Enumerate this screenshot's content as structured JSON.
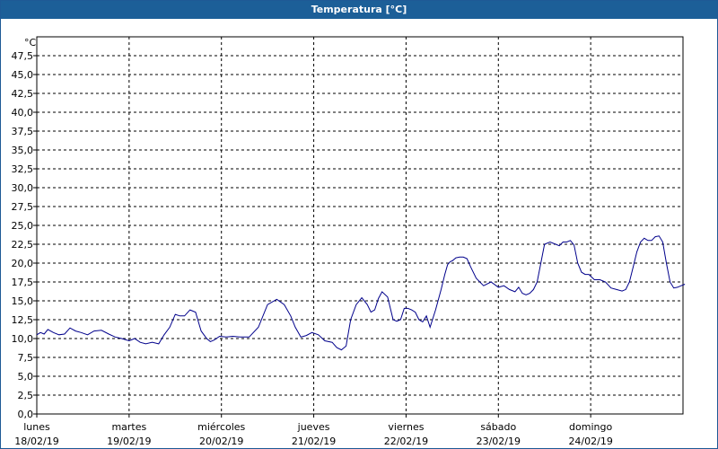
{
  "window": {
    "title": "Temperatura [°C]"
  },
  "chart_data": {
    "type": "line",
    "title": "Temperatura [°C]",
    "ylabel": "°C",
    "xlabel": "",
    "ylim": [
      0,
      50
    ],
    "ytick_step": 2.5,
    "ytick_labels": [
      "0,0",
      "2,5",
      "5,0",
      "7,5",
      "10,0",
      "12,5",
      "15,0",
      "17,5",
      "20,0",
      "22,5",
      "25,0",
      "27,5",
      "30,0",
      "32,5",
      "35,0",
      "37,5",
      "40,0",
      "42,5",
      "45,0",
      "47,5"
    ],
    "grid": true,
    "x_unit": "day",
    "xlim": [
      0,
      7
    ],
    "x_categories": [
      {
        "day": "lunes",
        "date": "18/02/19"
      },
      {
        "day": "martes",
        "date": "19/02/19"
      },
      {
        "day": "miércoles",
        "date": "20/02/19"
      },
      {
        "day": "jueves",
        "date": "21/02/19"
      },
      {
        "day": "viernes",
        "date": "22/02/19"
      },
      {
        "day": "sábado",
        "date": "23/02/19"
      },
      {
        "day": "domingo",
        "date": "24/02/19"
      }
    ],
    "series": [
      {
        "color": "#00008b",
        "x": [
          0.0,
          0.04,
          0.08,
          0.12,
          0.18,
          0.24,
          0.3,
          0.36,
          0.42,
          0.48,
          0.55,
          0.62,
          0.7,
          0.78,
          0.85,
          0.92,
          1.0,
          1.06,
          1.12,
          1.18,
          1.25,
          1.32,
          1.38,
          1.44,
          1.5,
          1.55,
          1.6,
          1.66,
          1.72,
          1.78,
          1.84,
          1.88,
          1.92,
          1.98,
          2.05,
          2.12,
          2.2,
          2.3,
          2.4,
          2.5,
          2.6,
          2.68,
          2.75,
          2.8,
          2.86,
          2.92,
          2.98,
          3.05,
          3.12,
          3.2,
          3.25,
          3.3,
          3.35,
          3.4,
          3.46,
          3.52,
          3.58,
          3.62,
          3.66,
          3.7,
          3.74,
          3.8,
          3.86,
          3.9,
          3.94,
          3.98,
          4.02,
          4.06,
          4.1,
          4.14,
          4.18,
          4.22,
          4.26,
          4.32,
          4.38,
          4.42,
          4.45,
          4.48,
          4.5,
          4.54,
          4.58,
          4.62,
          4.66,
          4.7,
          4.76,
          4.84,
          4.92,
          5.0,
          5.06,
          5.12,
          5.18,
          5.22,
          5.26,
          5.3,
          5.34,
          5.38,
          5.42,
          5.46,
          5.5,
          5.56,
          5.62,
          5.66,
          5.7,
          5.74,
          5.78,
          5.82,
          5.86,
          5.9,
          5.94,
          5.98,
          6.04,
          6.1,
          6.16,
          6.22,
          6.28,
          6.34,
          6.38,
          6.42,
          6.46,
          6.5,
          6.54,
          6.58,
          6.62,
          6.66,
          6.7,
          6.74,
          6.78,
          6.82,
          6.86,
          6.9,
          6.94,
          6.98,
          7.02
        ],
        "y": [
          10.5,
          10.8,
          10.6,
          11.2,
          10.8,
          10.5,
          10.6,
          11.4,
          11.0,
          10.8,
          10.5,
          11.0,
          11.1,
          10.6,
          10.2,
          10.0,
          9.7,
          10.0,
          9.5,
          9.3,
          9.5,
          9.3,
          10.5,
          11.5,
          13.2,
          13.0,
          13.0,
          13.8,
          13.5,
          11.0,
          10.0,
          9.6,
          9.8,
          10.3,
          10.2,
          10.3,
          10.2,
          10.2,
          11.5,
          14.5,
          15.2,
          14.5,
          13.0,
          11.5,
          10.2,
          10.4,
          10.8,
          10.5,
          9.7,
          9.5,
          8.8,
          8.5,
          9.0,
          12.5,
          14.5,
          15.4,
          14.5,
          13.5,
          13.8,
          15.3,
          16.2,
          15.5,
          12.5,
          12.3,
          12.5,
          14.0,
          14.0,
          13.8,
          13.5,
          12.5,
          12.2,
          13.0,
          11.5,
          13.8,
          16.5,
          18.5,
          19.8,
          20.2,
          20.3,
          20.7,
          20.8,
          20.8,
          20.6,
          19.5,
          18.0,
          17.0,
          17.5,
          16.8,
          17.0,
          16.5,
          16.2,
          16.8,
          16.0,
          15.8,
          16.0,
          16.5,
          17.5,
          20.0,
          22.5,
          22.8,
          22.5,
          22.3,
          22.8,
          22.8,
          23.0,
          22.4,
          20.0,
          18.8,
          18.5,
          18.5,
          17.8,
          17.8,
          17.5,
          16.7,
          16.5,
          16.3,
          16.5,
          17.5,
          19.5,
          21.5,
          22.8,
          23.3,
          23.0,
          23.0,
          23.5,
          23.6,
          22.8,
          20.0,
          17.5,
          16.7,
          16.8,
          17.0,
          17.2
        ]
      }
    ]
  }
}
